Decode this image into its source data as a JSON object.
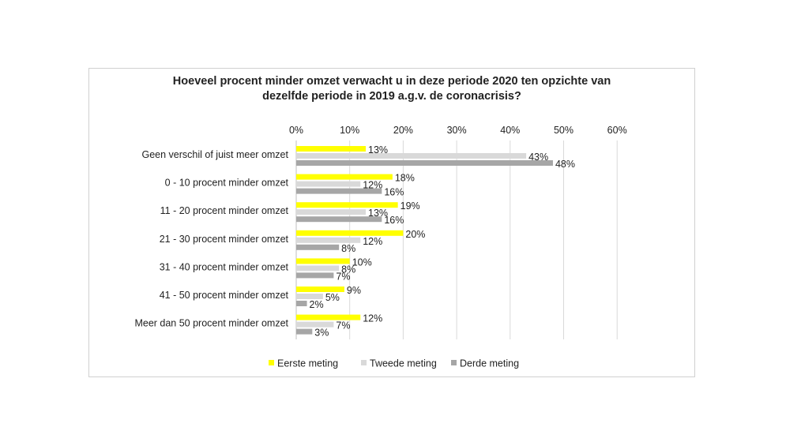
{
  "chart_data": {
    "type": "bar",
    "orientation": "horizontal",
    "title": "Hoeveel procent minder omzet verwacht u in deze periode 2020 ten opzichte van dezelfde periode in 2019 a.g.v. de coronacrisis?",
    "title_lines": [
      "Hoeveel procent minder omzet verwacht u in deze periode 2020 ten opzichte van",
      "dezelfde periode in 2019 a.g.v. de coronacrisis?"
    ],
    "categories": [
      "Geen verschil of juist meer omzet",
      "0 - 10 procent minder omzet",
      "11 - 20 procent minder omzet",
      "21 - 30 procent minder omzet",
      "31 - 40 procent minder omzet",
      "41 - 50 procent minder omzet",
      "Meer dan 50 procent minder omzet"
    ],
    "series": [
      {
        "name": "Eerste meting",
        "color": "#ffff00",
        "values": [
          13,
          18,
          19,
          20,
          10,
          9,
          12
        ]
      },
      {
        "name": "Tweede meting",
        "color": "#d9d9d9",
        "values": [
          43,
          12,
          13,
          12,
          8,
          5,
          7
        ]
      },
      {
        "name": "Derde meting",
        "color": "#a6a6a6",
        "values": [
          48,
          16,
          16,
          8,
          7,
          2,
          3
        ]
      }
    ],
    "xlim": [
      0,
      60
    ],
    "ticks": [
      0,
      10,
      20,
      30,
      40,
      50,
      60
    ],
    "tick_labels": [
      "0%",
      "10%",
      "20%",
      "30%",
      "40%",
      "50%",
      "60%"
    ],
    "value_suffix": "%",
    "axis_position": "top",
    "grid": true,
    "legend_position": "bottom"
  }
}
